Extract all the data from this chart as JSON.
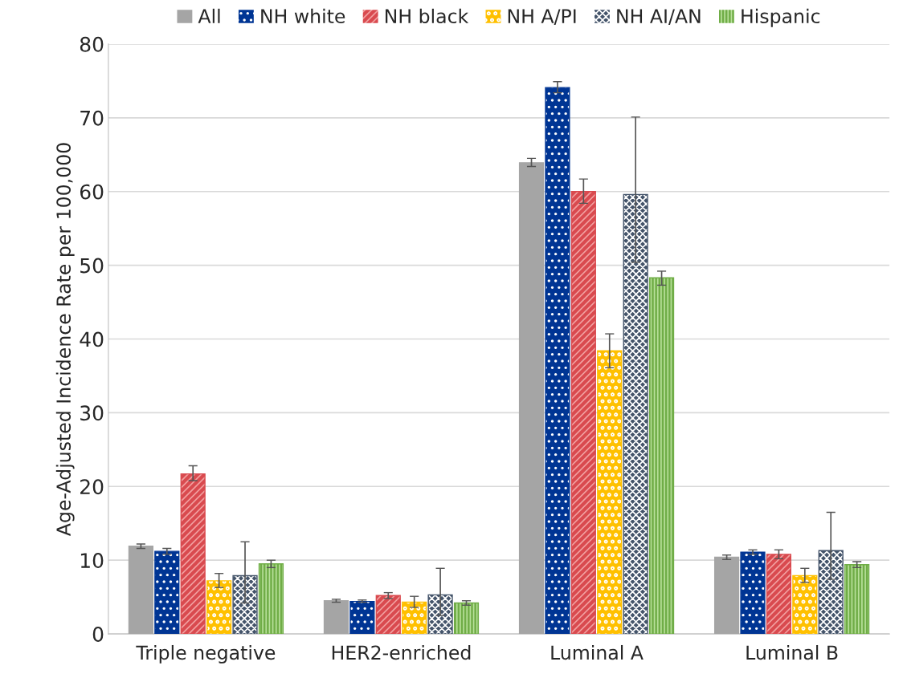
{
  "chart_data": {
    "type": "bar",
    "ylabel": "Age-Adjusted Incidence Rate per 100,000",
    "categories": [
      "Triple negative",
      "HER2-enriched",
      "Luminal A",
      "Luminal B"
    ],
    "series": [
      {
        "name": "All",
        "color": "#a5a5a5",
        "values": [
          11.9,
          4.5,
          63.9,
          10.4
        ],
        "errors": [
          [
            11.6,
            12.2
          ],
          [
            4.3,
            4.7
          ],
          [
            63.4,
            64.5
          ],
          [
            10.1,
            10.7
          ]
        ]
      },
      {
        "name": "NH white",
        "color": "#003594",
        "values": [
          11.2,
          4.4,
          74.1,
          11.1
        ],
        "errors": [
          [
            10.8,
            11.6
          ],
          [
            4.3,
            4.6
          ],
          [
            73.4,
            74.9
          ],
          [
            10.8,
            11.4
          ]
        ]
      },
      {
        "name": "NH black",
        "color": "#d94a4f",
        "values": [
          21.7,
          5.2,
          60.0,
          10.8
        ],
        "errors": [
          [
            20.8,
            22.8
          ],
          [
            4.8,
            5.6
          ],
          [
            58.4,
            61.7
          ],
          [
            10.2,
            11.4
          ]
        ]
      },
      {
        "name": "NH A/PI",
        "color": "#ffc000",
        "values": [
          7.2,
          4.3,
          38.4,
          7.9
        ],
        "errors": [
          [
            6.3,
            8.2
          ],
          [
            3.6,
            5.1
          ],
          [
            36.1,
            40.7
          ],
          [
            7.0,
            8.9
          ]
        ]
      },
      {
        "name": "NH AI/AN",
        "color": "#44546a",
        "values": [
          7.9,
          5.3,
          59.6,
          11.3
        ],
        "errors": [
          [
            4.2,
            12.5
          ],
          [
            2.5,
            8.9
          ],
          [
            50.4,
            70.1
          ],
          [
            7.4,
            16.5
          ]
        ]
      },
      {
        "name": "Hispanic",
        "color": "#70ad47",
        "values": [
          9.5,
          4.2,
          48.3,
          9.4
        ],
        "errors": [
          [
            9.0,
            10.0
          ],
          [
            3.9,
            4.5
          ],
          [
            47.3,
            49.2
          ],
          [
            9.0,
            9.8
          ]
        ]
      }
    ],
    "ylim": [
      0,
      80
    ],
    "yticks": [
      0,
      10,
      20,
      30,
      40,
      50,
      60,
      70,
      80
    ],
    "grid": "y",
    "legend": "top"
  }
}
